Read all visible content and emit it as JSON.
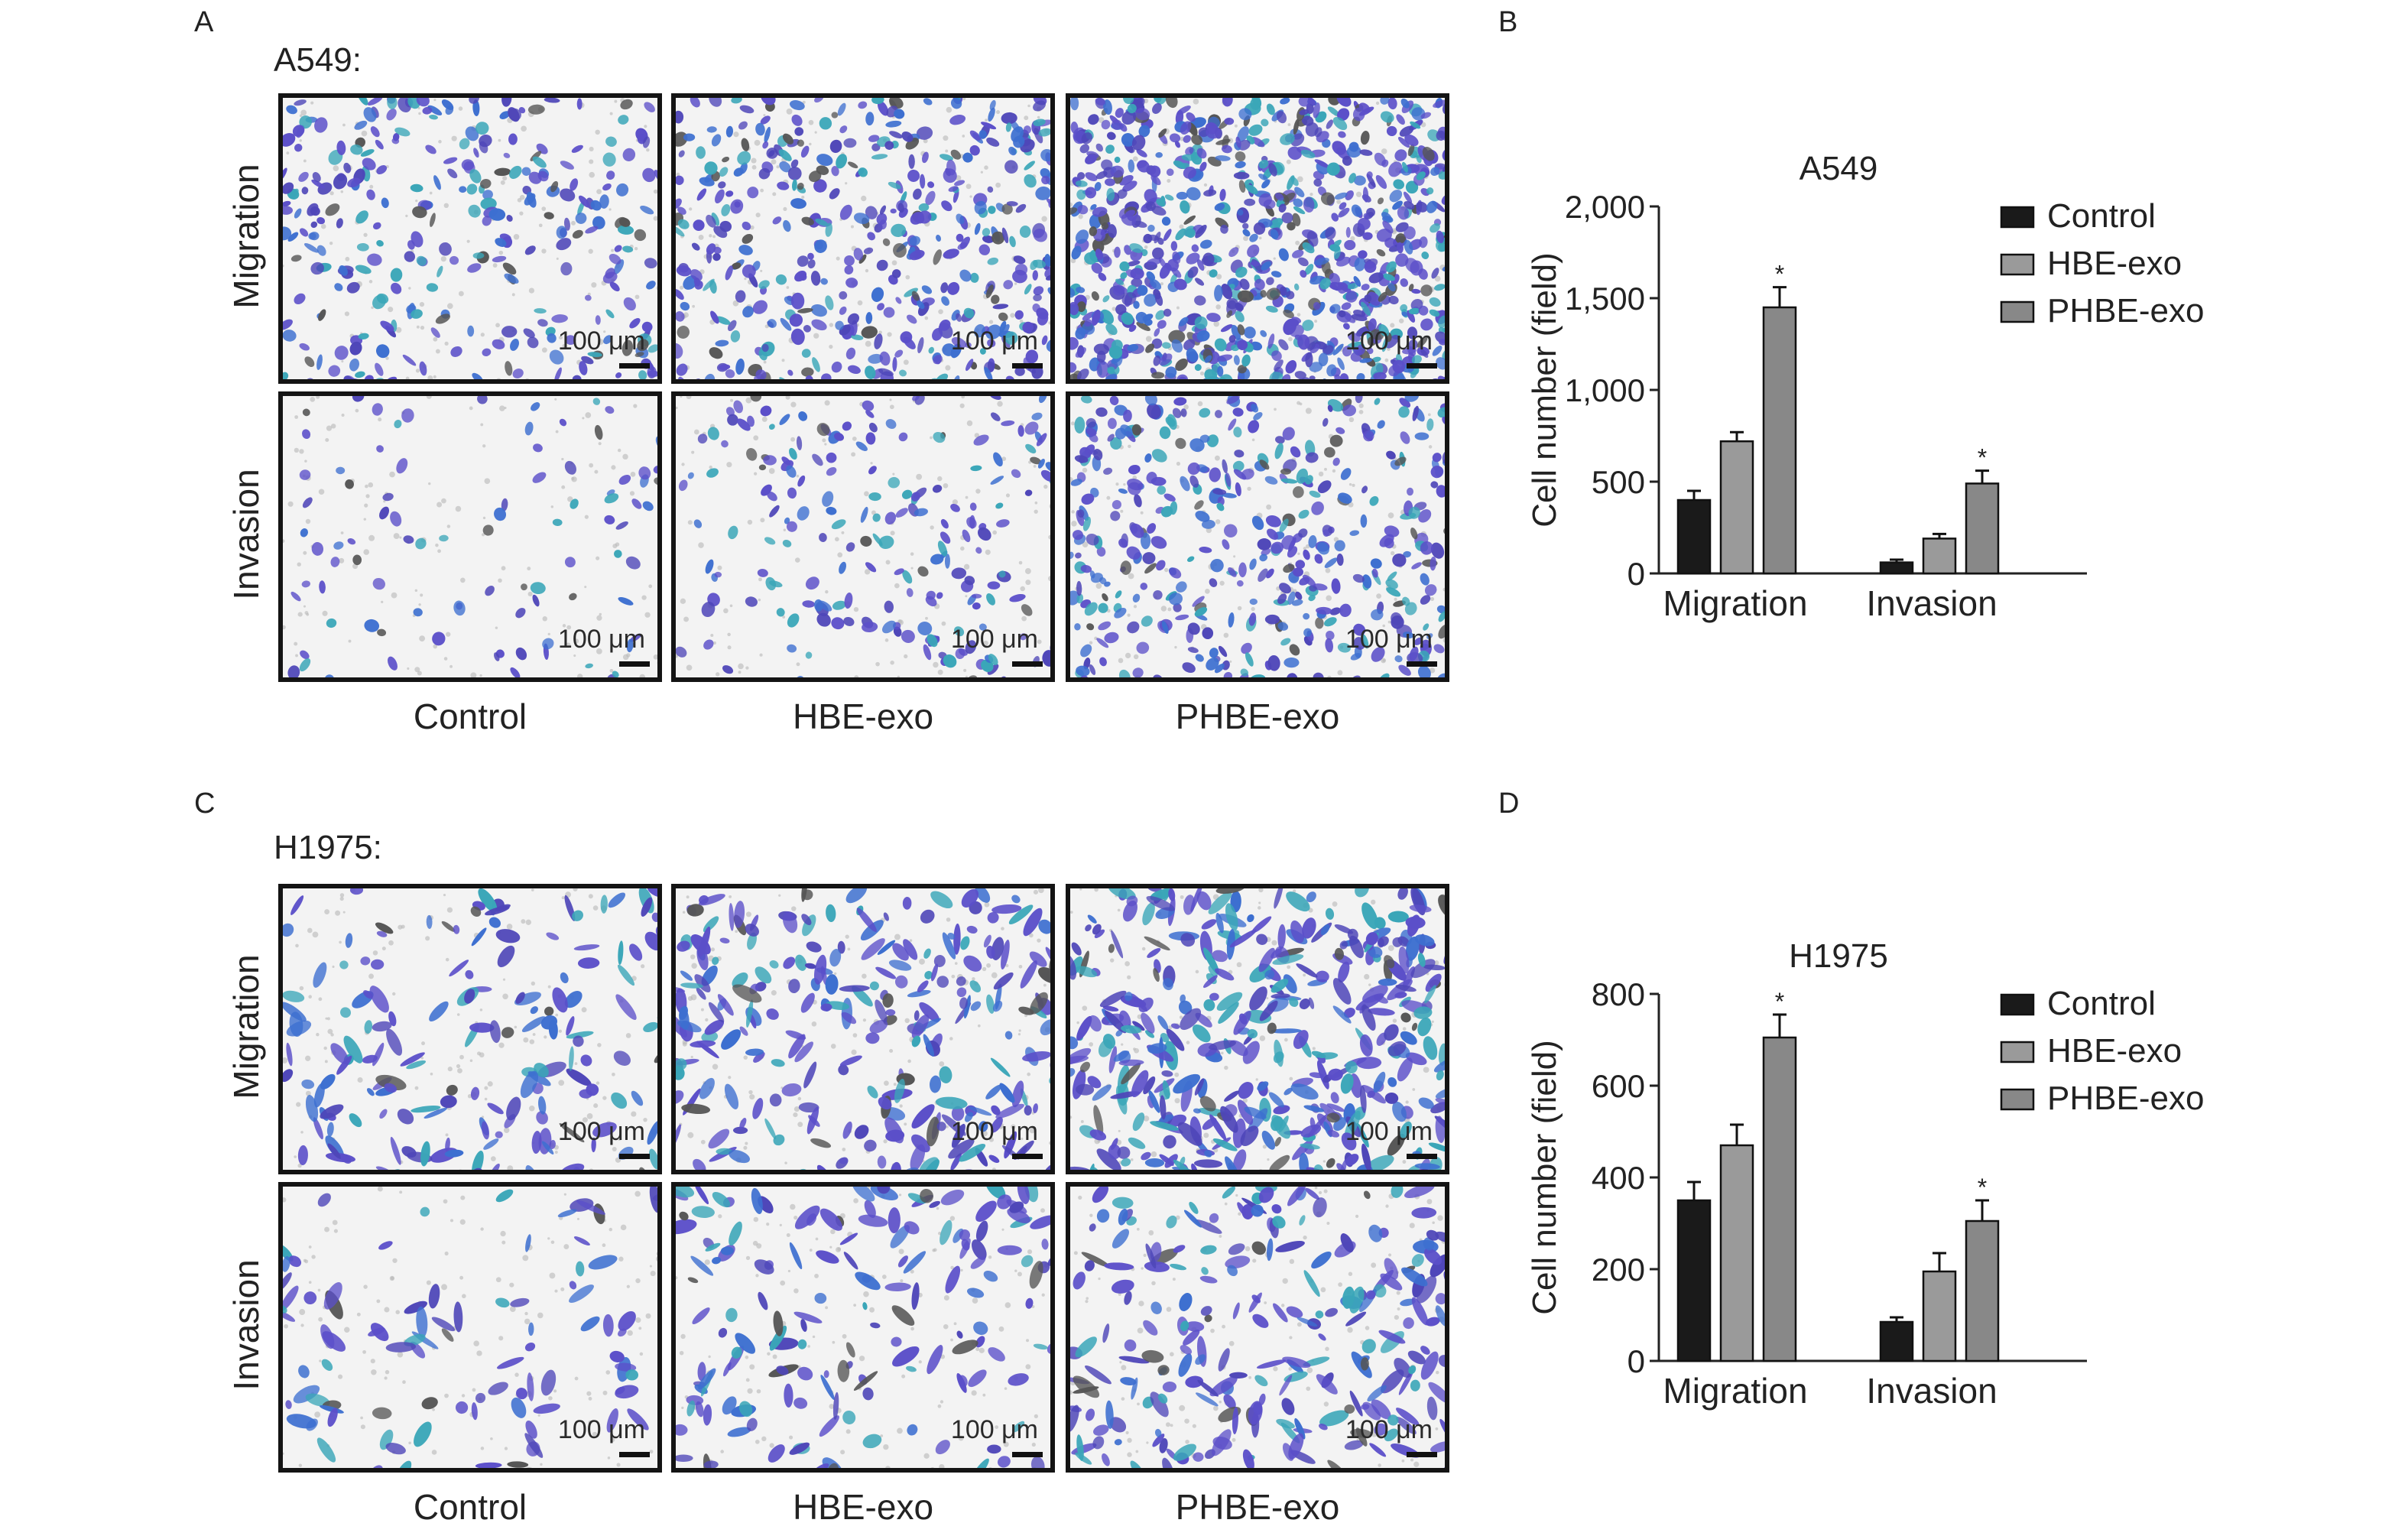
{
  "panels": {
    "A": {
      "letter": "A",
      "cell_line": "A549:"
    },
    "B": {
      "letter": "B"
    },
    "C": {
      "letter": "C",
      "cell_line": "H1975:"
    },
    "D": {
      "letter": "D"
    }
  },
  "micro": {
    "row_labels": [
      "Migration",
      "Invasion"
    ],
    "col_labels": [
      "Control",
      "HBE-exo",
      "PHBE-exo"
    ],
    "scale_text": "100 μm"
  },
  "chart_data": [
    {
      "type": "bar",
      "title": "A549",
      "ylabel": "Cell number (field)",
      "xlabel": "",
      "categories": [
        "Migration",
        "Invasion"
      ],
      "ylim": [
        0,
        2000
      ],
      "yticks": [
        "0",
        "500",
        "1,000",
        "1,500",
        "2,000"
      ],
      "ytick_values": [
        0,
        500,
        1000,
        1500,
        2000
      ],
      "legend_position": "top-right",
      "series": [
        {
          "name": "Control",
          "values": [
            400,
            60
          ],
          "errors": [
            50,
            15
          ],
          "color": "#1a1a1a"
        },
        {
          "name": "HBE-exo",
          "values": [
            720,
            190
          ],
          "errors": [
            50,
            25
          ],
          "color": "#9a9a9a"
        },
        {
          "name": "PHBE-exo",
          "values": [
            1450,
            490
          ],
          "errors": [
            110,
            70
          ],
          "color": "#888888"
        }
      ],
      "significance": [
        {
          "category": "Migration",
          "series": "PHBE-exo",
          "mark": "*"
        },
        {
          "category": "Invasion",
          "series": "PHBE-exo",
          "mark": "*"
        }
      ]
    },
    {
      "type": "bar",
      "title": "H1975",
      "ylabel": "Cell number (field)",
      "xlabel": "",
      "categories": [
        "Migration",
        "Invasion"
      ],
      "ylim": [
        0,
        800
      ],
      "yticks": [
        "0",
        "200",
        "400",
        "600",
        "800"
      ],
      "ytick_values": [
        0,
        200,
        400,
        600,
        800
      ],
      "legend_position": "top-right",
      "series": [
        {
          "name": "Control",
          "values": [
            350,
            85
          ],
          "errors": [
            40,
            10
          ],
          "color": "#1a1a1a"
        },
        {
          "name": "HBE-exo",
          "values": [
            470,
            195
          ],
          "errors": [
            45,
            40
          ],
          "color": "#9a9a9a"
        },
        {
          "name": "PHBE-exo",
          "values": [
            705,
            305
          ],
          "errors": [
            50,
            45
          ],
          "color": "#888888"
        }
      ],
      "significance": [
        {
          "category": "Migration",
          "series": "PHBE-exo",
          "mark": "*"
        },
        {
          "category": "Invasion",
          "series": "PHBE-exo",
          "mark": "*"
        }
      ]
    }
  ],
  "colors": {
    "stain_purple": "#5b4fc9",
    "stain_blue": "#3d6fd0",
    "stain_teal": "#3aa6b8",
    "background": "#f2f2f2"
  }
}
